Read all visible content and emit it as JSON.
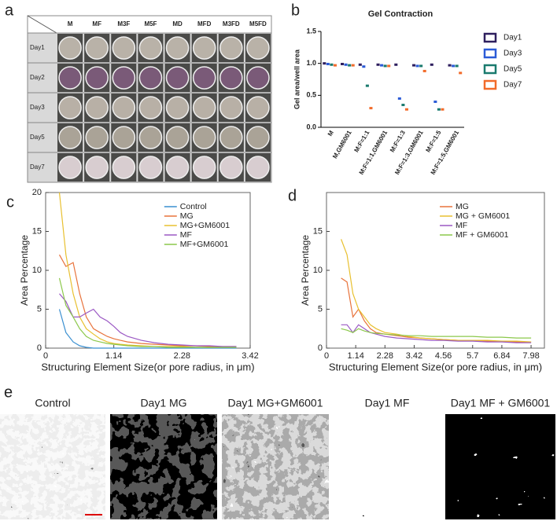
{
  "panel_labels": [
    "a",
    "b",
    "c",
    "d",
    "e"
  ],
  "photo_grid": {
    "columns": [
      "M",
      "MF",
      "M3F",
      "M5F",
      "MD",
      "MFD",
      "M3FD",
      "M5FD"
    ],
    "rows": [
      "Day1",
      "Day2",
      "Day3",
      "Day5",
      "Day7"
    ]
  },
  "micrographs": {
    "captions": [
      "Control",
      "Day1 MG",
      "Day1 MG+GM6001",
      "Day1 MF",
      "Day1 MF + GM6001"
    ]
  },
  "chart_data": [
    {
      "type": "bar",
      "title": "Gel Contraction",
      "y_label": "Gel area/well area",
      "categories": [
        "M",
        "M,GM6001",
        "M:F=1:1",
        "M:F=1:1,GM6001",
        "M:F=1:3",
        "M:F=1:3,GM6001",
        "M:F=1:5",
        "M:F=1:5,GM6001"
      ],
      "ylim": [
        0,
        1.5
      ],
      "yticks": [
        {
          "value": 0,
          "label": "0.0"
        },
        0.5,
        {
          "value": 1,
          "label": "1.0"
        },
        1.5
      ],
      "series": [
        {
          "name": "Day1",
          "color": "#2e1f5e",
          "values": [
            1.0,
            0.99,
            0.98,
            0.98,
            0.98,
            0.97,
            0.98,
            0.97
          ]
        },
        {
          "name": "Day3",
          "color": "#2b5bd7",
          "values": [
            0.99,
            0.98,
            0.95,
            0.97,
            0.45,
            0.96,
            0.4,
            0.96
          ]
        },
        {
          "name": "Day5",
          "color": "#1a7a6e",
          "values": [
            0.98,
            0.97,
            0.65,
            0.96,
            0.35,
            0.96,
            0.28,
            0.96
          ]
        },
        {
          "name": "Day7",
          "color": "#f26b2a",
          "values": [
            0.97,
            0.97,
            0.3,
            0.96,
            0.28,
            0.88,
            0.28,
            0.85
          ]
        }
      ]
    },
    {
      "type": "line",
      "x_label": "Structuring Element Size(or pore radius, in μm)",
      "y_label": "Area Percentage",
      "xlim": [
        0,
        3.42
      ],
      "xticks": [
        0,
        1.14,
        2.28,
        3.42
      ],
      "ylim": [
        0,
        20
      ],
      "yticks": [
        0,
        5,
        10,
        15,
        20
      ],
      "x": [
        0.23,
        0.34,
        0.46,
        0.57,
        0.68,
        0.8,
        0.91,
        1.03,
        1.14,
        1.25,
        1.37,
        1.6,
        1.82,
        2.05,
        2.28,
        2.51,
        2.74,
        2.96,
        3.19
      ],
      "series": [
        {
          "name": "Control",
          "color": "#3a8fd0",
          "values": [
            5,
            2,
            0.8,
            0.3,
            0.1,
            0,
            0,
            0,
            0,
            0,
            0,
            0,
            0,
            0,
            0,
            0,
            0,
            0,
            0
          ]
        },
        {
          "name": "MG",
          "color": "#e8733c",
          "values": [
            12,
            10.5,
            11,
            7,
            4,
            2.5,
            2,
            1.5,
            1.2,
            1,
            0.8,
            0.6,
            0.5,
            0.4,
            0.3,
            0.3,
            0.2,
            0.2,
            0.2
          ]
        },
        {
          "name": "MG+GM6001",
          "color": "#e8c030",
          "values": [
            20,
            12,
            7,
            4,
            2.5,
            1.8,
            1.2,
            0.8,
            0.6,
            0.5,
            0.4,
            0.3,
            0.2,
            0.2,
            0.2,
            0.1,
            0.1,
            0.1,
            0.1
          ]
        },
        {
          "name": "MF",
          "color": "#9b59c4",
          "values": [
            7,
            6,
            4,
            4,
            4.5,
            5,
            4,
            3.5,
            2.8,
            2,
            1.5,
            1,
            0.7,
            0.5,
            0.4,
            0.3,
            0.3,
            0.2,
            0.2
          ]
        },
        {
          "name": "MF+GM6001",
          "color": "#8cc84b",
          "values": [
            9,
            5.5,
            4,
            2.5,
            1.5,
            1,
            0.8,
            0.6,
            0.5,
            0.4,
            0.3,
            0.2,
            0.2,
            0.1,
            0.1,
            0.1,
            0.1,
            0.1,
            0.1
          ]
        }
      ]
    },
    {
      "type": "line",
      "x_label": "Structuring Element Size(or pore radius, in μm)",
      "y_label": "Area Percentage",
      "xlim": [
        0,
        8.5
      ],
      "xticks": [
        0,
        1.14,
        2.28,
        3.42,
        4.56,
        5.7,
        6.84,
        7.98
      ],
      "ylim": [
        0,
        20
      ],
      "yticks": [
        0,
        5,
        10,
        15
      ],
      "x": [
        0.57,
        0.8,
        1.03,
        1.25,
        1.48,
        1.71,
        1.94,
        2.28,
        2.74,
        3.19,
        3.65,
        4.1,
        4.56,
        5.13,
        5.7,
        6.27,
        6.84,
        7.41,
        7.98
      ],
      "series": [
        {
          "name": "MG",
          "color": "#e8733c",
          "values": [
            9,
            8.5,
            4,
            5,
            3.5,
            2.5,
            2,
            1.8,
            1.6,
            1.4,
            1.3,
            1.2,
            1.1,
            1,
            1,
            0.9,
            0.9,
            0.8,
            0.8
          ]
        },
        {
          "name": "MG + GM6001",
          "color": "#e8c030",
          "values": [
            14,
            12,
            7,
            5,
            4,
            3,
            2.5,
            2,
            1.8,
            1.5,
            1.3,
            1.2,
            1.1,
            1,
            1,
            1,
            0.9,
            0.9,
            0.8
          ]
        },
        {
          "name": "MF",
          "color": "#9b59c4",
          "values": [
            3,
            3,
            2,
            3,
            2.5,
            2,
            1.8,
            1.5,
            1.3,
            1.2,
            1.1,
            1,
            1,
            0.9,
            0.9,
            0.8,
            0.8,
            0.7,
            0.7
          ]
        },
        {
          "name": "MF + GM6001",
          "color": "#8cc84b",
          "values": [
            2.5,
            2.3,
            2,
            2.5,
            2.2,
            2,
            1.9,
            1.8,
            1.7,
            1.6,
            1.6,
            1.5,
            1.5,
            1.5,
            1.5,
            1.4,
            1.4,
            1.3,
            1.3
          ]
        }
      ]
    }
  ]
}
